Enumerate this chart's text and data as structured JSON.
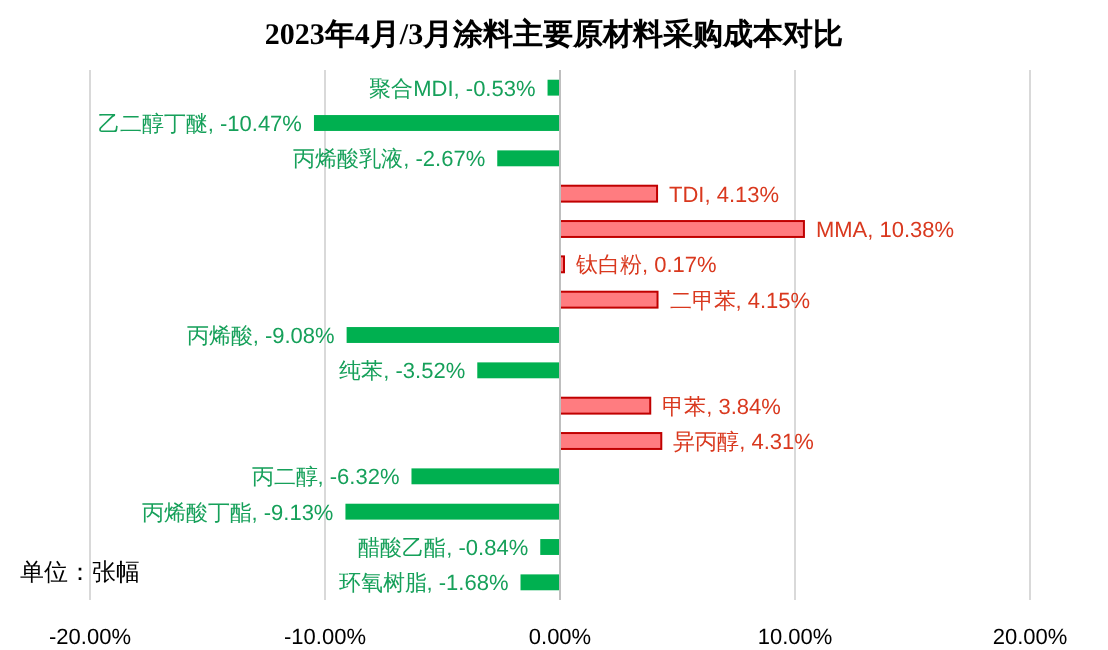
{
  "chart_data": {
    "type": "bar",
    "orientation": "horizontal",
    "title": "2023年4月/3月涂料主要原材料采购成本对比",
    "categories": [
      null,
      null,
      null,
      null,
      null,
      null,
      null,
      null,
      null,
      null,
      null,
      null,
      null,
      null,
      null
    ],
    "values": [
      -0.53,
      -10.47,
      -2.67,
      4.13,
      10.38,
      0.17,
      4.15,
      -9.08,
      -3.52,
      3.84,
      4.31,
      -6.32,
      -9.13,
      -0.84,
      -1.68
    ],
    "value_labels": [
      "聚合MDI, -0.53%",
      "乙二醇丁醚, -10.47%",
      "丙烯酸乳液, -2.67%",
      "TDI, 4.13%",
      "MMA, 10.38%",
      "钛白粉, 0.17%",
      "二甲苯, 4.15%",
      "丙烯酸, -9.08%",
      "纯苯, -3.52%",
      "甲苯, 3.84%",
      "异丙醇, 4.31%",
      "丙二醇, -6.32%",
      "丙烯酸丁酯, -9.13%",
      "醋酸乙酯, -0.84%",
      "环氧树脂, -1.68%"
    ],
    "colors": [
      "#00b050",
      "#00b050",
      "#00b050",
      "#ff7c80",
      "#ff7c80",
      "#ff7c80",
      "#ff7c80",
      "#00b050",
      "#00b050",
      "#ff7c80",
      "#ff7c80",
      "#00b050",
      "#00b050",
      "#00b050",
      "#00b050"
    ],
    "xlim": [
      -20,
      20
    ],
    "xticks": [
      {
        "value": -20,
        "label": "-20.00%"
      },
      {
        "value": -10,
        "label": "-10.00%"
      },
      {
        "value": 0,
        "label": "0.00%"
      },
      {
        "value": 10,
        "label": "10.00%"
      },
      {
        "value": 20,
        "label": "20.00%"
      }
    ],
    "grid": "x",
    "tick_labels": "x",
    "annotations": [
      "单位：张幅"
    ]
  }
}
